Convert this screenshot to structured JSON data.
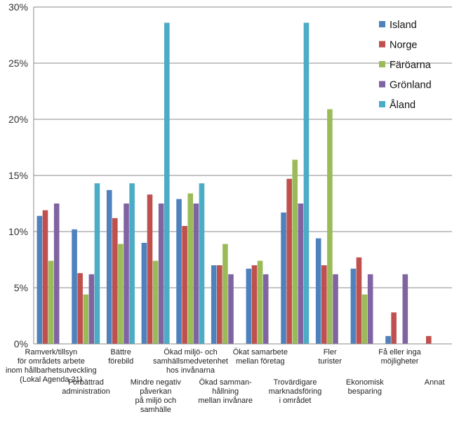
{
  "chart_data": {
    "type": "bar",
    "title": "",
    "xlabel": "",
    "ylabel": "",
    "ylim": [
      0,
      30
    ],
    "yticks": [
      "0%",
      "5%",
      "10%",
      "15%",
      "20%",
      "25%",
      "30%"
    ],
    "grid": true,
    "legend_position": "top-right",
    "categories": [
      [
        "Ramverk/tillsyn",
        "för områdets arbete",
        "inom hållbarhetsutveckling",
        "(Lokal Agenda 21)"
      ],
      [
        "Förbättrad",
        "administration"
      ],
      [
        "Bättre",
        "förebild"
      ],
      [
        "Mindre negativ",
        "påverkan",
        "på miljö och",
        "samhälle"
      ],
      [
        "Ökad miljö- och",
        "samhällsmedvetenhet",
        "hos invånarna"
      ],
      [
        "Ökad samman-",
        "hållning",
        "mellan invånare"
      ],
      [
        "Ökat samarbete",
        "mellan företag"
      ],
      [
        "Trovärdigare",
        "marknadsföring",
        "i området"
      ],
      [
        "Fler",
        "turister"
      ],
      [
        "Ekonomisk",
        "besparing"
      ],
      [
        "Få eller inga",
        "möjligheter"
      ],
      [
        "Annat"
      ]
    ],
    "series": [
      {
        "name": "Island",
        "color": "#4f81bd",
        "values": [
          11.4,
          10.2,
          13.7,
          9.0,
          12.9,
          7.0,
          6.7,
          11.7,
          9.4,
          6.7,
          0.7,
          0
        ]
      },
      {
        "name": "Norge",
        "color": "#c0504d",
        "values": [
          11.9,
          6.3,
          11.2,
          13.3,
          10.5,
          7.0,
          7.0,
          14.7,
          7.0,
          7.7,
          2.8,
          0.7
        ]
      },
      {
        "name": "Färöarna",
        "color": "#9bbb59",
        "values": [
          7.4,
          4.4,
          8.9,
          7.4,
          13.4,
          8.9,
          7.4,
          16.4,
          20.9,
          4.4,
          0,
          0
        ]
      },
      {
        "name": "Grönland",
        "color": "#8064a2",
        "values": [
          12.5,
          6.2,
          12.5,
          12.5,
          12.5,
          6.2,
          6.2,
          12.5,
          6.2,
          6.2,
          6.2,
          0
        ]
      },
      {
        "name": "Åland",
        "color": "#4bacc6",
        "values": [
          0,
          14.3,
          14.3,
          28.6,
          14.3,
          0,
          0,
          28.6,
          0,
          0,
          0,
          0
        ]
      }
    ]
  }
}
